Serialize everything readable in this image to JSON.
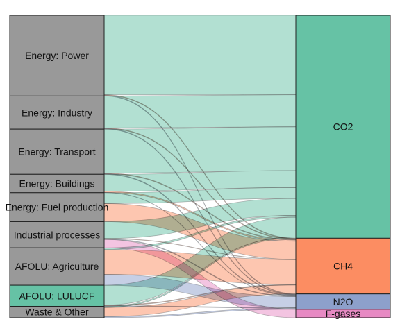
{
  "chart_data": {
    "type": "sankey",
    "title": "",
    "sources": [
      {
        "name": "Energy: Power"
      },
      {
        "name": "Energy: Industry"
      },
      {
        "name": "Energy: Transport"
      },
      {
        "name": "Energy: Buildings"
      },
      {
        "name": "Energy: Fuel production"
      },
      {
        "name": "Industrial processes"
      },
      {
        "name": "AFOLU: Agriculture"
      },
      {
        "name": "AFOLU: LULUCF"
      },
      {
        "name": "Waste & Other"
      }
    ],
    "targets": [
      {
        "name": "CO2",
        "color": "#66c2a5"
      },
      {
        "name": "CH4",
        "color": "#fc8d62"
      },
      {
        "name": "N2O",
        "color": "#8da0cb"
      },
      {
        "name": "F-gases",
        "color": "#e78ac3"
      }
    ],
    "flows": [
      {
        "source": "Energy: Power",
        "target": "CO2",
        "value": 13.2
      },
      {
        "source": "Energy: Power",
        "target": "CH4",
        "value": 0.1
      },
      {
        "source": "Energy: Power",
        "target": "N2O",
        "value": 0.1
      },
      {
        "source": "Energy: Industry",
        "target": "CO2",
        "value": 5.3
      },
      {
        "source": "Energy: Industry",
        "target": "CH4",
        "value": 0.1
      },
      {
        "source": "Energy: Industry",
        "target": "N2O",
        "value": 0.1
      },
      {
        "source": "Energy: Transport",
        "target": "CO2",
        "value": 7.3
      },
      {
        "source": "Energy: Transport",
        "target": "CH4",
        "value": 0.1
      },
      {
        "source": "Energy: Transport",
        "target": "N2O",
        "value": 0.1
      },
      {
        "source": "Energy: Buildings",
        "target": "CO2",
        "value": 2.8
      },
      {
        "source": "Energy: Buildings",
        "target": "CH4",
        "value": 0.2
      },
      {
        "source": "Energy: Buildings",
        "target": "N2O",
        "value": 0.05
      },
      {
        "source": "Energy: Fuel production",
        "target": "CO2",
        "value": 1.8
      },
      {
        "source": "Energy: Fuel production",
        "target": "CH4",
        "value": 3.0
      },
      {
        "source": "Industrial processes",
        "target": "CO2",
        "value": 2.8
      },
      {
        "source": "Industrial processes",
        "target": "CH4",
        "value": 0.05
      },
      {
        "source": "Industrial processes",
        "target": "N2O",
        "value": 0.1
      },
      {
        "source": "Industrial processes",
        "target": "F-gases",
        "value": 1.4
      },
      {
        "source": "AFOLU: Agriculture",
        "target": "CO2",
        "value": 0.3
      },
      {
        "source": "AFOLU: Agriculture",
        "target": "CH4",
        "value": 4.1
      },
      {
        "source": "AFOLU: Agriculture",
        "target": "N2O",
        "value": 1.8
      },
      {
        "source": "AFOLU: LULUCF",
        "target": "CO2",
        "value": 3.3
      },
      {
        "source": "AFOLU: LULUCF",
        "target": "CH4",
        "value": 0.1
      },
      {
        "source": "AFOLU: LULUCF",
        "target": "N2O",
        "value": 0.1
      },
      {
        "source": "Waste & Other",
        "target": "CO2",
        "value": 0.2
      },
      {
        "source": "Waste & Other",
        "target": "CH4",
        "value": 1.5
      },
      {
        "source": "Waste & Other",
        "target": "N2O",
        "value": 0.2
      }
    ],
    "source_node_color": "#999999",
    "highlighted_source": {
      "name": "AFOLU: LULUCF",
      "color": "#66c2a5"
    },
    "node_border_color": "#222222",
    "flow_opacity": 0.5,
    "grid": false,
    "legend": "none"
  }
}
